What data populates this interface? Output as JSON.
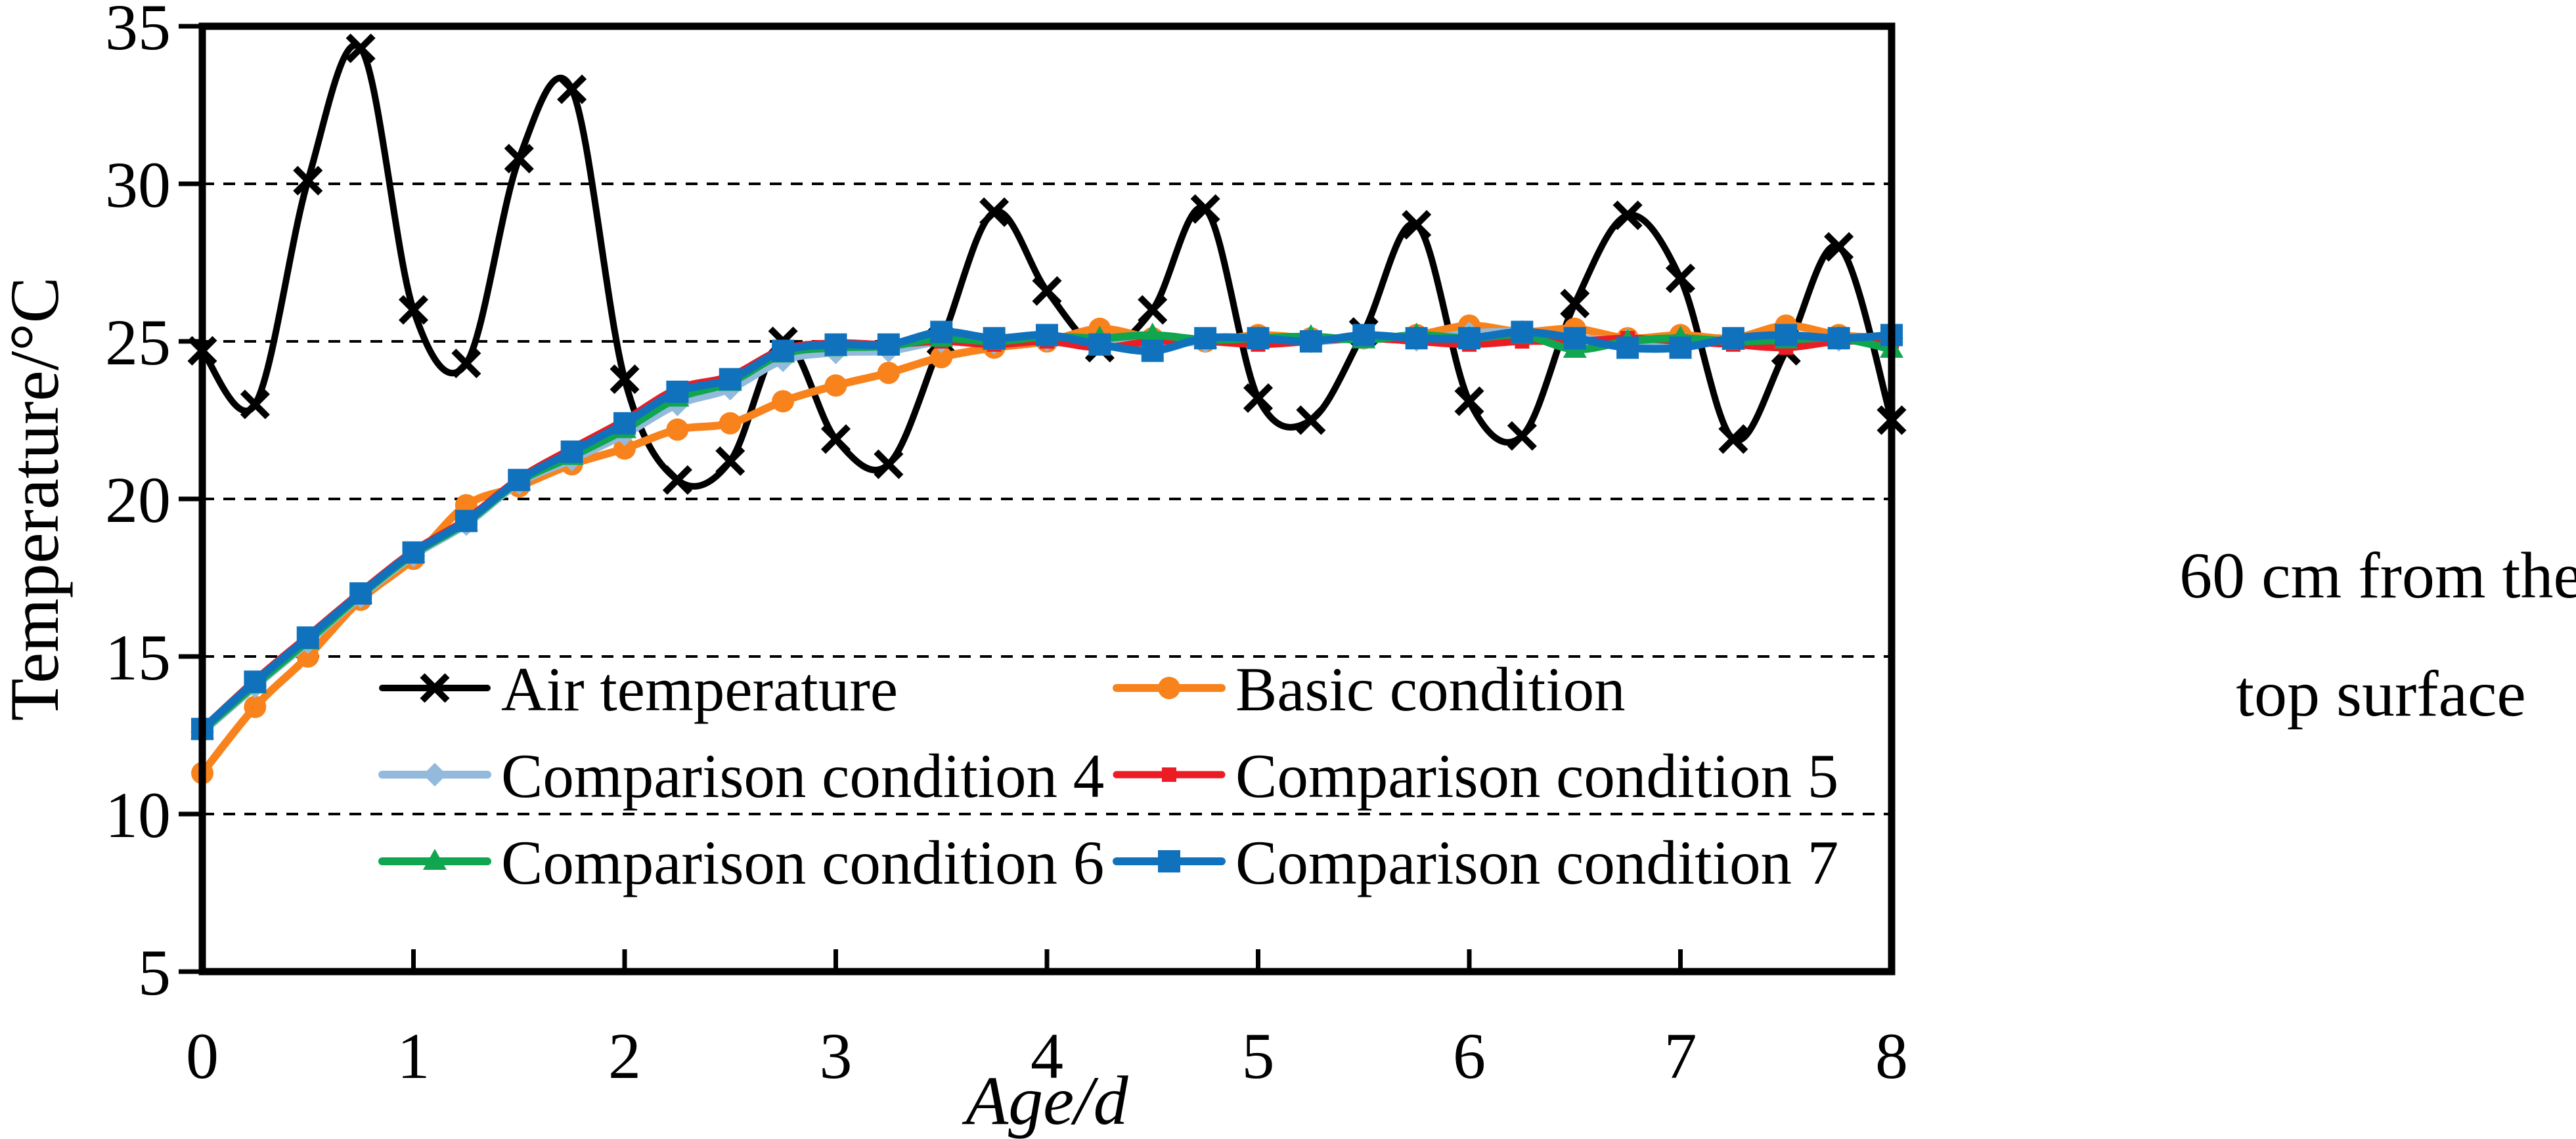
{
  "page": {
    "background": "#FFFFFF"
  },
  "annotation": {
    "line1": "60 cm from the",
    "line2": "top surface"
  },
  "chart_data": {
    "type": "line",
    "title": "",
    "xlabel": "Age/d",
    "ylabel": "Temperature/°C",
    "xlim": [
      0,
      8
    ],
    "ylim": [
      5,
      35
    ],
    "x_ticks": [
      "0",
      "1",
      "2",
      "3",
      "4",
      "5",
      "6",
      "7",
      "8"
    ],
    "x_tick_values": [
      0,
      1,
      2,
      3,
      4,
      5,
      6,
      7,
      8
    ],
    "y_ticks": [
      "35",
      "30",
      "25",
      "20",
      "15",
      "10",
      "5"
    ],
    "y_tick_values": [
      35,
      30,
      25,
      20,
      15,
      10,
      5
    ],
    "grid_values": [
      30,
      25,
      20,
      15,
      10
    ],
    "grid_style": "horizontal-dashed-black",
    "legend_position": "inside-bottom-left-two-columns",
    "x": [
      0,
      0.25,
      0.5,
      0.75,
      1,
      1.25,
      1.5,
      1.75,
      2,
      2.25,
      2.5,
      2.75,
      3,
      3.25,
      3.5,
      3.75,
      4,
      4.25,
      4.5,
      4.75,
      5,
      5.25,
      5.5,
      5.75,
      6,
      6.25,
      6.5,
      6.75,
      7,
      7.25,
      7.5,
      7.75,
      8
    ],
    "series": [
      {
        "name": "Air temperature",
        "color": "#000000",
        "marker": "x-cross",
        "line_width": 10,
        "values": [
          24.7,
          23.0,
          30.1,
          34.3,
          26.0,
          24.3,
          30.8,
          33.0,
          23.8,
          20.6,
          21.2,
          25.0,
          21.9,
          21.1,
          25.0,
          29.1,
          26.6,
          24.8,
          26.0,
          29.2,
          23.2,
          22.5,
          25.3,
          28.7,
          23.1,
          22.0,
          26.2,
          29.0,
          27.0,
          21.9,
          24.7,
          28.0,
          22.5
        ]
      },
      {
        "name": "Basic condition",
        "color": "#F8821B",
        "marker": "circle",
        "line_width": 12,
        "values": [
          11.3,
          13.4,
          15.0,
          16.8,
          18.1,
          19.8,
          20.4,
          21.1,
          21.6,
          22.2,
          22.4,
          23.1,
          23.6,
          24.0,
          24.5,
          24.8,
          25.0,
          25.4,
          25.1,
          25.0,
          25.2,
          25.1,
          25.1,
          25.2,
          25.5,
          25.3,
          25.4,
          25.1,
          25.2,
          25.1,
          25.5,
          25.2,
          25.1
        ]
      },
      {
        "name": "Comparison condition 4",
        "color": "#93BADC",
        "marker": "diamond",
        "line_width": 12,
        "values": [
          12.6,
          14.05,
          15.45,
          16.9,
          18.2,
          19.2,
          20.5,
          21.25,
          22.05,
          23.0,
          23.5,
          24.4,
          24.65,
          24.7,
          25.0,
          24.95,
          25.05,
          25.0,
          24.9,
          25.0,
          25.05,
          25.0,
          25.1,
          25.05,
          25.25,
          25.3,
          25.1,
          25.05,
          24.95,
          25.05,
          25.15,
          25.05,
          25.1
        ]
      },
      {
        "name": "Comparison condition 5",
        "color": "#EC1C24",
        "marker": "square-small",
        "line_width": 11,
        "values": [
          12.7,
          14.25,
          15.65,
          17.05,
          18.35,
          19.35,
          20.65,
          21.6,
          22.5,
          23.5,
          23.9,
          24.75,
          24.95,
          24.9,
          25.0,
          24.9,
          25.0,
          24.8,
          25.0,
          25.0,
          24.9,
          25.0,
          25.1,
          25.0,
          24.9,
          25.0,
          25.0,
          25.1,
          25.0,
          24.9,
          24.8,
          25.0,
          25.0
        ]
      },
      {
        "name": "Comparison condition 6",
        "color": "#10A64F",
        "marker": "triangle",
        "line_width": 12,
        "values": [
          12.65,
          14.1,
          15.5,
          16.95,
          18.25,
          19.25,
          20.55,
          21.35,
          22.2,
          23.2,
          23.7,
          24.6,
          24.8,
          24.85,
          25.1,
          25.0,
          25.15,
          25.1,
          25.2,
          25.05,
          25.1,
          25.15,
          25.05,
          25.2,
          25.1,
          25.2,
          24.75,
          25.0,
          25.1,
          25.0,
          25.05,
          25.1,
          24.75
        ]
      },
      {
        "name": "Comparison condition 7",
        "color": "#1072BD",
        "marker": "square",
        "line_width": 12,
        "values": [
          12.7,
          14.2,
          15.6,
          17.0,
          18.3,
          19.3,
          20.6,
          21.5,
          22.4,
          23.4,
          23.8,
          24.7,
          24.9,
          24.9,
          25.3,
          25.1,
          25.2,
          24.9,
          24.7,
          25.1,
          25.1,
          25.0,
          25.2,
          25.1,
          25.1,
          25.3,
          25.1,
          24.8,
          24.8,
          25.1,
          25.2,
          25.1,
          25.2
        ]
      }
    ]
  }
}
